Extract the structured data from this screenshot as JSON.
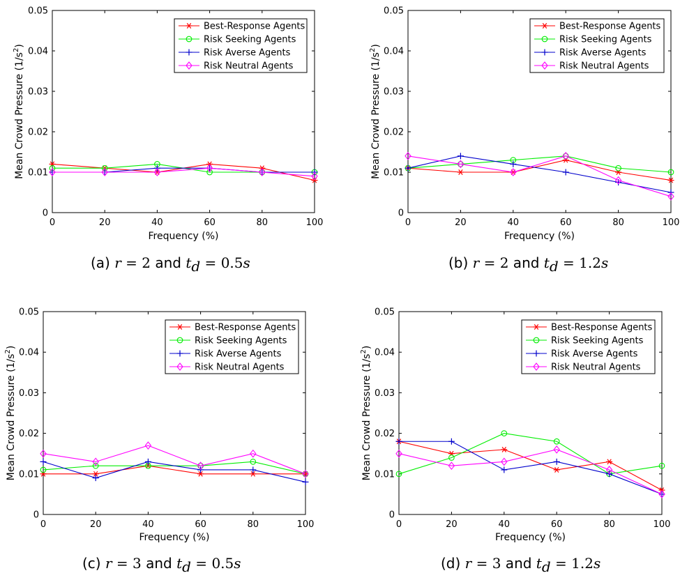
{
  "chart_data": [
    {
      "type": "line",
      "caption": {
        "label": "(a)",
        "r": "2",
        "td": "0.5s"
      },
      "xlabel": "Frequency (%)",
      "ylabel": "Mean Crowd Pressure (1/s",
      "ylabel_sup": "2",
      "ylabel_end": ")",
      "x": [
        0,
        20,
        40,
        60,
        80,
        100
      ],
      "xlim": [
        0,
        100
      ],
      "ylim": [
        0,
        0.05
      ],
      "xticks": [
        "0",
        "20",
        "40",
        "60",
        "80",
        "100"
      ],
      "yticks": [
        "0",
        "0.01",
        "0.02",
        "0.03",
        "0.04",
        "0.05"
      ],
      "legend_position": "top-right",
      "series": [
        {
          "name": "Best-Response Agents",
          "color": "#ff0000",
          "marker": "asterisk",
          "values": [
            0.012,
            0.011,
            0.01,
            0.012,
            0.011,
            0.008
          ]
        },
        {
          "name": "Risk Seeking Agents",
          "color": "#00ee00",
          "marker": "circle",
          "values": [
            0.011,
            0.011,
            0.012,
            0.01,
            0.01,
            0.01
          ]
        },
        {
          "name": "Risk Averse Agents",
          "color": "#0000cc",
          "marker": "plus",
          "values": [
            0.01,
            0.01,
            0.011,
            0.011,
            0.01,
            0.01
          ]
        },
        {
          "name": "Risk Neutral Agents",
          "color": "#ff00ff",
          "marker": "diamond",
          "values": [
            0.01,
            0.01,
            0.01,
            0.011,
            0.01,
            0.009
          ]
        }
      ]
    },
    {
      "type": "line",
      "caption": {
        "label": "(b)",
        "r": "2",
        "td": "1.2s"
      },
      "xlabel": "Frequency (%)",
      "ylabel": "Mean Crowd Pressure (1/s",
      "ylabel_sup": "2",
      "ylabel_end": ")",
      "x": [
        0,
        20,
        40,
        60,
        80,
        100
      ],
      "xlim": [
        0,
        100
      ],
      "ylim": [
        0,
        0.05
      ],
      "xticks": [
        "0",
        "20",
        "40",
        "60",
        "80",
        "100"
      ],
      "yticks": [
        "0",
        "0.01",
        "0.02",
        "0.03",
        "0.04",
        "0.05"
      ],
      "legend_position": "top-right",
      "series": [
        {
          "name": "Best-Response Agents",
          "color": "#ff0000",
          "marker": "asterisk",
          "values": [
            0.011,
            0.01,
            0.01,
            0.013,
            0.01,
            0.008
          ]
        },
        {
          "name": "Risk Seeking Agents",
          "color": "#00ee00",
          "marker": "circle",
          "values": [
            0.011,
            0.012,
            0.013,
            0.014,
            0.011,
            0.01
          ]
        },
        {
          "name": "Risk Averse Agents",
          "color": "#0000cc",
          "marker": "plus",
          "values": [
            0.011,
            0.014,
            0.012,
            0.01,
            0.0075,
            0.005
          ]
        },
        {
          "name": "Risk Neutral Agents",
          "color": "#ff00ff",
          "marker": "diamond",
          "values": [
            0.014,
            0.012,
            0.01,
            0.014,
            0.008,
            0.004
          ]
        }
      ]
    },
    {
      "type": "line",
      "caption": {
        "label": "(c)",
        "r": "3",
        "td": "0.5s"
      },
      "xlabel": "Frequency (%)",
      "ylabel": "Mean Crowd Pressure (1/s",
      "ylabel_sup": "2",
      "ylabel_end": ")",
      "x": [
        0,
        20,
        40,
        60,
        80,
        100
      ],
      "xlim": [
        0,
        100
      ],
      "ylim": [
        0,
        0.05
      ],
      "xticks": [
        "0",
        "20",
        "40",
        "60",
        "80",
        "100"
      ],
      "yticks": [
        "0",
        "0.01",
        "0.02",
        "0.03",
        "0.04",
        "0.05"
      ],
      "legend_position": "top-right",
      "series": [
        {
          "name": "Best-Response Agents",
          "color": "#ff0000",
          "marker": "asterisk",
          "values": [
            0.01,
            0.01,
            0.012,
            0.01,
            0.01,
            0.01
          ]
        },
        {
          "name": "Risk Seeking Agents",
          "color": "#00ee00",
          "marker": "circle",
          "values": [
            0.011,
            0.012,
            0.012,
            0.012,
            0.013,
            0.01
          ]
        },
        {
          "name": "Risk Averse Agents",
          "color": "#0000cc",
          "marker": "plus",
          "values": [
            0.013,
            0.009,
            0.013,
            0.011,
            0.011,
            0.008
          ]
        },
        {
          "name": "Risk Neutral Agents",
          "color": "#ff00ff",
          "marker": "diamond",
          "values": [
            0.015,
            0.013,
            0.017,
            0.012,
            0.015,
            0.01
          ]
        }
      ]
    },
    {
      "type": "line",
      "caption": {
        "label": "(d)",
        "r": "3",
        "td": "1.2s"
      },
      "xlabel": "Frequency (%)",
      "ylabel": "Mean Crowd Pressure (1/s",
      "ylabel_sup": "2",
      "ylabel_end": ")",
      "x": [
        0,
        20,
        40,
        60,
        80,
        100
      ],
      "xlim": [
        0,
        100
      ],
      "ylim": [
        0,
        0.05
      ],
      "xticks": [
        "0",
        "20",
        "40",
        "60",
        "80",
        "100"
      ],
      "yticks": [
        "0",
        "0.01",
        "0.02",
        "0.03",
        "0.04",
        "0.05"
      ],
      "legend_position": "top-right",
      "series": [
        {
          "name": "Best-Response Agents",
          "color": "#ff0000",
          "marker": "asterisk",
          "values": [
            0.018,
            0.015,
            0.016,
            0.011,
            0.013,
            0.006
          ]
        },
        {
          "name": "Risk Seeking Agents",
          "color": "#00ee00",
          "marker": "circle",
          "values": [
            0.01,
            0.014,
            0.02,
            0.018,
            0.01,
            0.012
          ]
        },
        {
          "name": "Risk Averse Agents",
          "color": "#0000cc",
          "marker": "plus",
          "values": [
            0.018,
            0.018,
            0.011,
            0.013,
            0.01,
            0.005
          ]
        },
        {
          "name": "Risk Neutral Agents",
          "color": "#ff00ff",
          "marker": "diamond",
          "values": [
            0.015,
            0.012,
            0.013,
            0.016,
            0.011,
            0.005
          ]
        }
      ]
    }
  ],
  "caption_text": {
    "and": "and",
    "r_sym": "r",
    "t_sym": "t",
    "t_sub": "d",
    "equals": "="
  }
}
